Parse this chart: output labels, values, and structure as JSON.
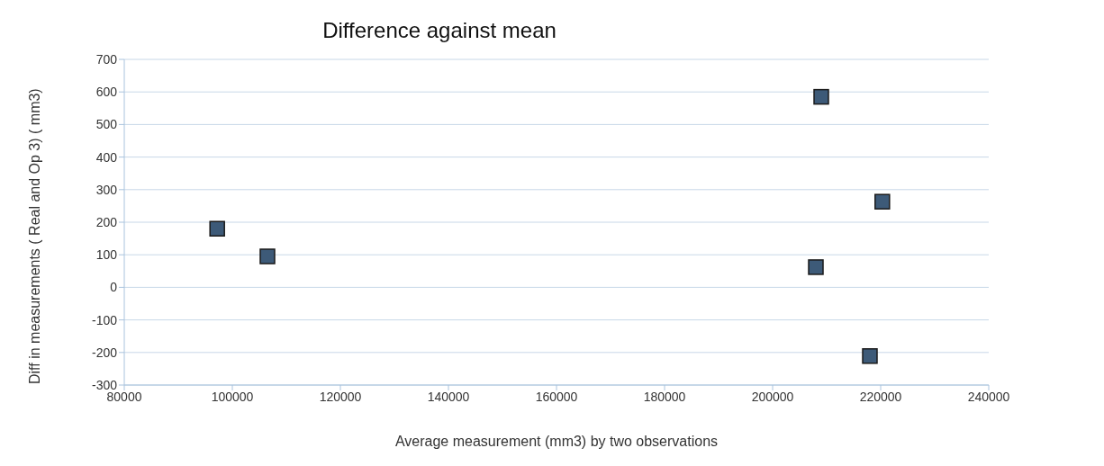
{
  "chart_data": {
    "type": "scatter",
    "title": "Difference against mean",
    "xlabel": "Average measurement (mm3) by two observations",
    "ylabel": "Diff in measurements ( Real and Op 3) ( mm3)",
    "x": [
      97200,
      106500,
      209000,
      208000,
      220300,
      218000
    ],
    "series": [
      {
        "color": "#3d5a78",
        "values": [
          180,
          95,
          585,
          62,
          263,
          -211
        ]
      }
    ],
    "xlim": [
      80000,
      240000
    ],
    "xticks": [
      80000,
      100000,
      120000,
      140000,
      160000,
      180000,
      200000,
      220000,
      240000
    ],
    "ylim": [
      -300,
      700
    ],
    "yticks": [
      -300,
      -200,
      -100,
      0,
      100,
      200,
      300,
      400,
      500,
      600,
      700
    ],
    "grid": "y",
    "marker": "square",
    "legend": false
  }
}
